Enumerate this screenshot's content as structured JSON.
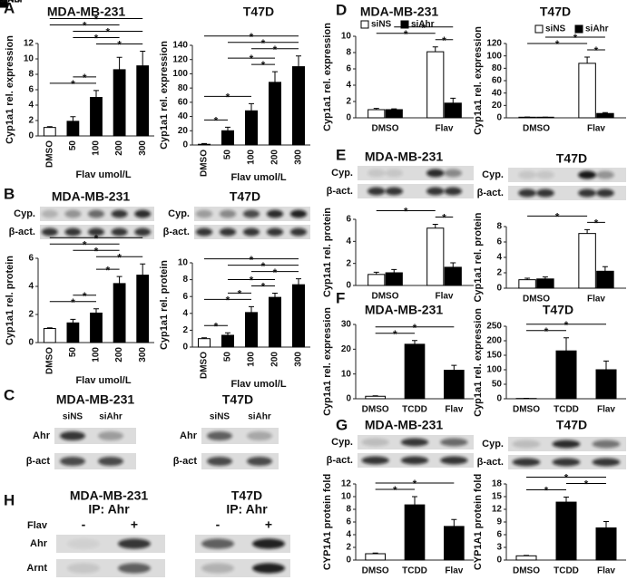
{
  "panel_labels": [
    "A",
    "B",
    "C",
    "D",
    "E",
    "F",
    "G",
    "H"
  ],
  "chart_data": [
    {
      "type": "bar",
      "title": "MDA-MB-231",
      "ylabel": "Cyp1a1 rel. expression",
      "xlabel": "Flav umol/L",
      "categories": [
        "DMSO",
        "50",
        "100",
        "200",
        "300"
      ],
      "values": [
        1.1,
        1.9,
        5.0,
        8.6,
        9.1
      ],
      "errors": [
        0.1,
        0.6,
        0.9,
        1.6,
        1.9
      ],
      "colors": [
        "#ffffff",
        "#000000",
        "#000000",
        "#000000",
        "#000000"
      ],
      "ylim": [
        0,
        12
      ],
      "yticks": [
        0,
        2,
        4,
        6,
        8,
        10,
        12
      ],
      "significance": [
        {
          "pair": [
            0,
            2
          ],
          "label": "*"
        },
        {
          "pair": [
            1,
            2
          ],
          "label": "*"
        },
        {
          "pair": [
            2,
            4
          ],
          "label": "*"
        },
        {
          "pair": [
            1,
            3
          ],
          "label": "*"
        },
        {
          "pair": [
            1,
            4
          ],
          "label": "*"
        },
        {
          "pair": [
            0,
            3
          ],
          "label": "*"
        },
        {
          "pair": [
            0,
            4
          ],
          "label": "*"
        }
      ]
    },
    {
      "type": "bar",
      "title": "T47D",
      "ylabel": "Cyp1a1 rel. expression",
      "xlabel": "Flav umol/L",
      "categories": [
        "DMSO",
        "50",
        "100",
        "200",
        "300"
      ],
      "values": [
        1,
        20,
        48,
        88,
        110
      ],
      "errors": [
        1,
        5,
        10,
        15,
        15
      ],
      "colors": [
        "#ffffff",
        "#000000",
        "#000000",
        "#000000",
        "#000000"
      ],
      "ylim": [
        0,
        140
      ],
      "yticks": [
        0,
        20,
        40,
        60,
        80,
        100,
        120,
        140
      ],
      "significance": [
        {
          "pair": [
            0,
            1
          ],
          "label": "*"
        },
        {
          "pair": [
            0,
            2
          ],
          "label": "*"
        },
        {
          "pair": [
            2,
            3
          ],
          "label": "*"
        },
        {
          "pair": [
            1,
            3
          ],
          "label": "*"
        },
        {
          "pair": [
            2,
            4
          ],
          "label": "*"
        },
        {
          "pair": [
            1,
            4
          ],
          "label": "*"
        },
        {
          "pair": [
            0,
            4
          ],
          "label": "*"
        }
      ]
    },
    {
      "type": "bar",
      "title": "MDA-MB-231",
      "blot_rows": [
        "Cyp.",
        "β-act."
      ],
      "ylabel": "Cyp1a1 rel. protein",
      "xlabel": "Flav umol/L",
      "categories": [
        "DMSO",
        "50",
        "100",
        "200",
        "300"
      ],
      "values": [
        1,
        1.4,
        2.1,
        4.2,
        4.8
      ],
      "errors": [
        0.05,
        0.25,
        0.3,
        0.5,
        0.8
      ],
      "colors": [
        "#ffffff",
        "#000000",
        "#000000",
        "#000000",
        "#000000"
      ],
      "ylim": [
        0,
        6
      ],
      "yticks": [
        0,
        2,
        4,
        6
      ],
      "significance": [
        {
          "pair": [
            0,
            2
          ],
          "label": "*"
        },
        {
          "pair": [
            1,
            2
          ],
          "label": "*"
        },
        {
          "pair": [
            2,
            3
          ],
          "label": "*"
        },
        {
          "pair": [
            2,
            4
          ],
          "label": "*"
        },
        {
          "pair": [
            1,
            3
          ],
          "label": "*"
        },
        {
          "pair": [
            0,
            3
          ],
          "label": "*"
        },
        {
          "pair": [
            0,
            4
          ],
          "label": "*"
        }
      ]
    },
    {
      "type": "bar",
      "title": "T47D",
      "blot_rows": [
        "Cyp.",
        "β-act."
      ],
      "ylabel": "Cyp1a1 rel. protein",
      "xlabel": "Flav umol/L",
      "categories": [
        "DMSO",
        "50",
        "100",
        "200",
        "300"
      ],
      "values": [
        1,
        1.4,
        4.1,
        5.9,
        7.4
      ],
      "errors": [
        0.1,
        0.3,
        0.7,
        0.5,
        0.7
      ],
      "colors": [
        "#ffffff",
        "#000000",
        "#000000",
        "#000000",
        "#000000"
      ],
      "ylim": [
        0,
        10
      ],
      "yticks": [
        0,
        2,
        4,
        6,
        8,
        10
      ],
      "significance": [
        {
          "pair": [
            0,
            1
          ],
          "label": "*"
        },
        {
          "pair": [
            0,
            2
          ],
          "label": "*"
        },
        {
          "pair": [
            1,
            2
          ],
          "label": "*"
        },
        {
          "pair": [
            2,
            3
          ],
          "label": "*"
        },
        {
          "pair": [
            1,
            3
          ],
          "label": "*"
        },
        {
          "pair": [
            2,
            4
          ],
          "label": "*"
        },
        {
          "pair": [
            1,
            4
          ],
          "label": "*"
        },
        {
          "pair": [
            0,
            4
          ],
          "label": "*"
        }
      ]
    },
    {
      "type": "bar",
      "title": "MDA-MB-231",
      "ylabel": "Cyp1a1 rel. expression",
      "categories": [
        "DMSO",
        "Flav"
      ],
      "series": [
        {
          "name": "siNS",
          "color": "#ffffff",
          "values": [
            1,
            8.1
          ],
          "errors": [
            0.15,
            0.6
          ]
        },
        {
          "name": "siAhr",
          "color": "#000000",
          "values": [
            1,
            1.8
          ],
          "errors": [
            0.1,
            0.6
          ]
        }
      ],
      "ylim": [
        0,
        10
      ],
      "yticks": [
        0,
        2,
        4,
        6,
        8,
        10
      ],
      "significance": [
        {
          "pair": [
            [
              0,
              1
            ],
            [
              1,
              1
            ]
          ],
          "label": "*"
        },
        {
          "pair": [
            [
              0,
              0
            ],
            [
              0,
              1
            ]
          ],
          "label": "*"
        },
        {
          "pair": [
            [
              1,
              0
            ],
            [
              1,
              1
            ]
          ],
          "label": "*"
        }
      ]
    },
    {
      "type": "bar",
      "title": "T47D",
      "ylabel": "Cyp1a1 rel. expression",
      "categories": [
        "DMSO",
        "Flav"
      ],
      "series": [
        {
          "name": "siNS",
          "color": "#ffffff",
          "values": [
            1,
            88
          ],
          "errors": [
            0.2,
            10
          ]
        },
        {
          "name": "siAhr",
          "color": "#000000",
          "values": [
            1,
            7
          ],
          "errors": [
            0.1,
            1.5
          ]
        }
      ],
      "ylim": [
        0,
        120
      ],
      "yticks": [
        0,
        20,
        40,
        60,
        80,
        100,
        120
      ],
      "significance": [
        {
          "pair": [
            [
              0,
              1
            ],
            [
              1,
              1
            ]
          ],
          "label": "*"
        },
        {
          "pair": [
            [
              0,
              0
            ],
            [
              0,
              1
            ]
          ],
          "label": "*"
        },
        {
          "pair": [
            [
              1,
              0
            ],
            [
              1,
              1
            ]
          ],
          "label": "*"
        }
      ]
    },
    {
      "type": "bar",
      "title": "MDA-MB-231",
      "blot_rows": [
        "Cyp.",
        "β-act."
      ],
      "ylabel": "Cyp1a1 rel. protein",
      "categories": [
        "DMSO",
        "Flav"
      ],
      "series": [
        {
          "name": "siNS",
          "color": "#ffffff",
          "values": [
            1,
            5.2
          ],
          "errors": [
            0.2,
            0.35
          ]
        },
        {
          "name": "siAhr",
          "color": "#000000",
          "values": [
            1.15,
            1.65
          ],
          "errors": [
            0.3,
            0.4
          ]
        }
      ],
      "ylim": [
        0,
        6
      ],
      "yticks": [
        0,
        2,
        4,
        6
      ],
      "significance": [
        {
          "pair": [
            [
              0,
              1
            ],
            [
              1,
              1
            ]
          ],
          "label": "*"
        },
        {
          "pair": [
            [
              0,
              0
            ],
            [
              0,
              1
            ]
          ],
          "label": "*"
        }
      ]
    },
    {
      "type": "bar",
      "title": "T47D",
      "blot_rows": [
        "Cyp.",
        "β-act."
      ],
      "ylabel": "Cyp1a1 rel. protein",
      "categories": [
        "DMSO",
        "Flav"
      ],
      "series": [
        {
          "name": "siNS",
          "color": "#ffffff",
          "values": [
            1.1,
            7.1
          ],
          "errors": [
            0.2,
            0.5
          ]
        },
        {
          "name": "siAhr",
          "color": "#000000",
          "values": [
            1.2,
            2.2
          ],
          "errors": [
            0.25,
            0.6
          ]
        }
      ],
      "ylim": [
        0,
        8
      ],
      "yticks": [
        0,
        2,
        4,
        6,
        8
      ],
      "significance": [
        {
          "pair": [
            [
              0,
              1
            ],
            [
              1,
              1
            ]
          ],
          "label": "*"
        },
        {
          "pair": [
            [
              0,
              0
            ],
            [
              0,
              1
            ]
          ],
          "label": "*"
        }
      ]
    },
    {
      "type": "bar",
      "title": "MDA-MB-231",
      "ylabel": "Cyp1a1 rel. expression",
      "categories": [
        "DMSO",
        "TCDD",
        "Flav"
      ],
      "values": [
        1,
        22,
        11.5
      ],
      "errors": [
        0.2,
        1.5,
        2
      ],
      "colors": [
        "#ffffff",
        "#000000",
        "#000000"
      ],
      "ylim": [
        0,
        30
      ],
      "yticks": [
        0,
        10,
        20,
        30
      ],
      "significance": [
        {
          "pair": [
            0,
            1
          ],
          "label": "*"
        },
        {
          "pair": [
            0,
            2
          ],
          "label": "*"
        }
      ]
    },
    {
      "type": "bar",
      "title": "T47D",
      "ylabel": "Cyp1a1 rel. expression",
      "categories": [
        "DMSO",
        "TCDD",
        "Flav"
      ],
      "values": [
        1,
        165,
        100
      ],
      "errors": [
        0.5,
        45,
        30
      ],
      "colors": [
        "#ffffff",
        "#000000",
        "#000000"
      ],
      "ylim": [
        0,
        250
      ],
      "yticks": [
        0,
        50,
        100,
        150,
        200,
        250
      ],
      "significance": [
        {
          "pair": [
            0,
            1
          ],
          "label": "*"
        },
        {
          "pair": [
            0,
            2
          ],
          "label": "*"
        }
      ]
    },
    {
      "type": "bar",
      "title": "MDA-MB-231",
      "blot_rows": [
        "Cyp.",
        "β-act."
      ],
      "ylabel": "CYP1A1 protein fold",
      "categories": [
        "DMSO",
        "TCDD",
        "Flav"
      ],
      "values": [
        1,
        8.7,
        5.3
      ],
      "errors": [
        0.1,
        1.3,
        1.1
      ],
      "colors": [
        "#ffffff",
        "#000000",
        "#000000"
      ],
      "ylim": [
        0,
        12
      ],
      "yticks": [
        0,
        2,
        4,
        6,
        8,
        10,
        12
      ],
      "significance": [
        {
          "pair": [
            0,
            1
          ],
          "label": "*"
        },
        {
          "pair": [
            0,
            2
          ],
          "label": "*"
        }
      ]
    },
    {
      "type": "bar",
      "title": "T47D",
      "blot_rows": [
        "Cyp.",
        "β-act."
      ],
      "ylabel": "CYP1A1 protein fold",
      "categories": [
        "DMSO",
        "TCDD",
        "Flav"
      ],
      "values": [
        1,
        13.7,
        7.6
      ],
      "errors": [
        0.1,
        1.2,
        1.5
      ],
      "colors": [
        "#ffffff",
        "#000000",
        "#000000"
      ],
      "ylim": [
        0,
        18
      ],
      "yticks": [
        0,
        3,
        6,
        9,
        12,
        15,
        18
      ],
      "significance": [
        {
          "pair": [
            0,
            1
          ],
          "label": "*"
        },
        {
          "pair": [
            1,
            2
          ],
          "label": "*"
        },
        {
          "pair": [
            0,
            2
          ],
          "label": "*"
        }
      ]
    }
  ],
  "panel_C": [
    {
      "title": "MDA-MB-231",
      "lanes": [
        "siNS",
        "siAhr"
      ],
      "rows": [
        "Ahr",
        "β-act"
      ]
    },
    {
      "title": "T47D",
      "lanes": [
        "siNS",
        "siAhr"
      ],
      "rows": [
        "Ahr",
        "β-act"
      ]
    }
  ],
  "panel_H": [
    {
      "title": "MDA-MB-231",
      "ip": "IP: Ahr",
      "lane_header": "Flav",
      "lanes": [
        "-",
        "+"
      ],
      "rows": [
        "Ahr",
        "Arnt"
      ]
    },
    {
      "title": "T47D",
      "ip": "IP: Ahr",
      "lanes": [
        "-",
        "+"
      ]
    }
  ]
}
